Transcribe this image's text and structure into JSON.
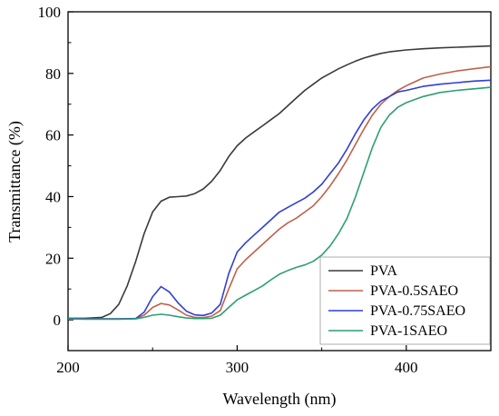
{
  "chart_data": {
    "type": "line",
    "xlabel": "Wavelength (nm)",
    "ylabel": "Transmittance (%)",
    "xlim": [
      200,
      450
    ],
    "ylim": [
      -10,
      100
    ],
    "x_ticks": [
      "200",
      "300",
      "400"
    ],
    "y_ticks": [
      "0",
      "20",
      "40",
      "60",
      "80",
      "100"
    ],
    "grid": false,
    "legend_position": "bottom-right",
    "series": [
      {
        "name": "PVA",
        "color": "#3a3a3a",
        "x": [
          200,
          210,
          220,
          225,
          230,
          235,
          240,
          245,
          250,
          255,
          260,
          265,
          270,
          275,
          280,
          285,
          290,
          295,
          300,
          305,
          310,
          315,
          320,
          325,
          330,
          335,
          340,
          345,
          350,
          355,
          360,
          365,
          370,
          375,
          380,
          385,
          390,
          400,
          410,
          420,
          430,
          440,
          450
        ],
        "y": [
          0.5,
          0.5,
          0.8,
          2.0,
          5.0,
          11.0,
          19.0,
          28.0,
          35.0,
          38.5,
          39.8,
          40.0,
          40.2,
          41.0,
          42.5,
          45.0,
          48.5,
          53.0,
          56.5,
          59.0,
          61.0,
          63.0,
          65.0,
          67.0,
          69.5,
          72.0,
          74.5,
          76.5,
          78.5,
          80.0,
          81.5,
          82.8,
          84.0,
          85.0,
          85.8,
          86.5,
          87.0,
          87.6,
          88.0,
          88.3,
          88.5,
          88.7,
          88.9
        ]
      },
      {
        "name": "PVA-0.5SAEO",
        "color": "#c0604a",
        "x": [
          200,
          210,
          220,
          230,
          240,
          245,
          250,
          255,
          260,
          265,
          270,
          275,
          280,
          285,
          290,
          295,
          300,
          305,
          310,
          315,
          320,
          325,
          330,
          335,
          340,
          345,
          350,
          355,
          360,
          365,
          370,
          375,
          380,
          385,
          390,
          395,
          400,
          410,
          420,
          430,
          440,
          450
        ],
        "y": [
          0.4,
          0.3,
          0.3,
          0.3,
          0.4,
          1.5,
          4.0,
          5.3,
          4.8,
          3.2,
          1.5,
          0.8,
          0.7,
          1.2,
          3.0,
          10.0,
          16.5,
          19.5,
          22.0,
          24.5,
          27.0,
          29.5,
          31.5,
          33.0,
          35.0,
          37.0,
          40.0,
          43.5,
          47.5,
          52.0,
          57.0,
          62.0,
          66.5,
          70.0,
          72.5,
          74.5,
          76.0,
          78.5,
          79.8,
          80.8,
          81.5,
          82.2
        ]
      },
      {
        "name": "PVA-0.75SAEO",
        "color": "#2f3fd6",
        "x": [
          200,
          210,
          220,
          230,
          240,
          245,
          250,
          255,
          260,
          265,
          270,
          275,
          280,
          285,
          290,
          295,
          300,
          305,
          310,
          315,
          320,
          325,
          330,
          335,
          340,
          345,
          350,
          355,
          360,
          365,
          370,
          375,
          380,
          385,
          390,
          395,
          400,
          410,
          420,
          430,
          440,
          450
        ],
        "y": [
          0.4,
          0.3,
          0.3,
          0.3,
          0.4,
          2.5,
          7.5,
          10.8,
          9.0,
          5.5,
          2.8,
          1.6,
          1.4,
          2.2,
          5.0,
          15.0,
          22.0,
          25.0,
          27.5,
          30.0,
          32.5,
          35.0,
          36.5,
          38.0,
          39.5,
          41.5,
          44.0,
          47.5,
          51.0,
          55.5,
          60.5,
          65.0,
          68.5,
          71.0,
          72.5,
          74.0,
          74.5,
          75.8,
          76.5,
          77.0,
          77.5,
          77.8
        ]
      },
      {
        "name": "PVA-1SAEO",
        "color": "#2e9e72",
        "x": [
          200,
          210,
          220,
          230,
          240,
          245,
          250,
          255,
          260,
          265,
          270,
          275,
          280,
          285,
          290,
          295,
          300,
          305,
          310,
          315,
          320,
          325,
          330,
          335,
          340,
          345,
          350,
          355,
          360,
          365,
          370,
          375,
          380,
          385,
          390,
          395,
          400,
          410,
          420,
          430,
          440,
          450
        ],
        "y": [
          0.3,
          0.2,
          0.2,
          0.2,
          0.3,
          0.8,
          1.5,
          1.8,
          1.5,
          1.0,
          0.6,
          0.4,
          0.4,
          0.5,
          1.5,
          4.0,
          6.5,
          8.0,
          9.5,
          11.0,
          13.0,
          14.8,
          16.0,
          17.0,
          17.8,
          19.0,
          21.0,
          24.0,
          28.0,
          33.0,
          40.0,
          48.0,
          56.0,
          62.5,
          66.5,
          69.0,
          70.5,
          72.5,
          73.8,
          74.5,
          75.0,
          75.5
        ]
      }
    ]
  }
}
